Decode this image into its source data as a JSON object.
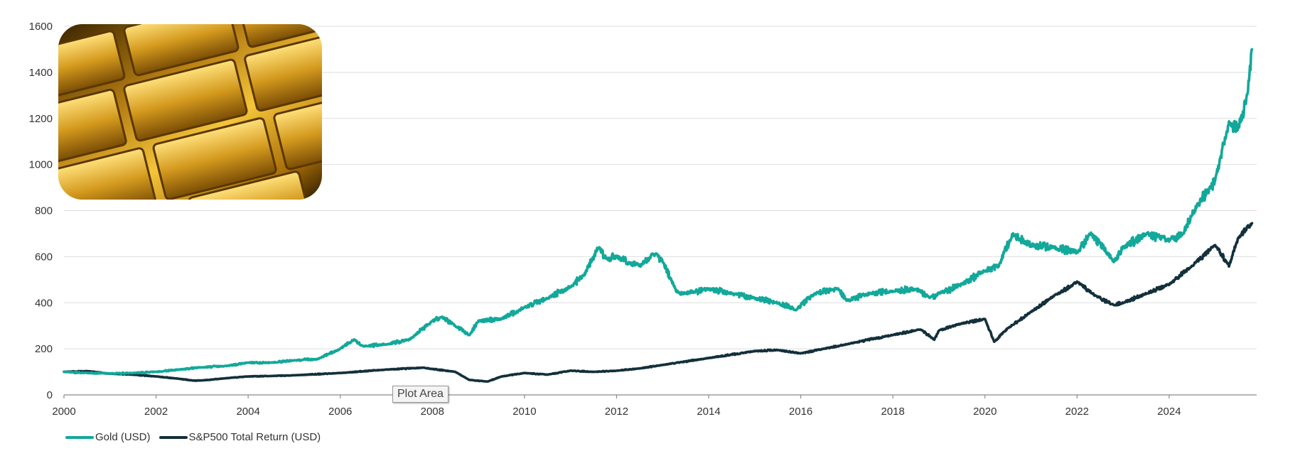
{
  "colors": {
    "gold": "#12a89a",
    "sp500": "#13303b",
    "grid": "#dedede",
    "axis": "#8a8a8a"
  },
  "image": {
    "icon": "gold-bars-photo"
  },
  "tooltip": {
    "text": "Plot Area"
  },
  "legend": {
    "items": [
      {
        "label": "Gold (USD)",
        "color": "#12a89a"
      },
      {
        "label": "S&P500 Total Return (USD)",
        "color": "#13303b"
      }
    ]
  },
  "chart_data": {
    "type": "line",
    "title": "",
    "xlabel": "",
    "ylabel": "",
    "xlim": [
      2000,
      2025.9
    ],
    "ylim": [
      0,
      1600
    ],
    "xticks": [
      "2000",
      "2002",
      "2004",
      "2006",
      "2008",
      "2010",
      "2012",
      "2014",
      "2016",
      "2018",
      "2020",
      "2022",
      "2024"
    ],
    "yticks": [
      "0",
      "200",
      "400",
      "600",
      "800",
      "1000",
      "1200",
      "1400",
      "1600"
    ],
    "grid": "horizontal",
    "legend_position": "bottom-left",
    "series": [
      {
        "name": "Gold (USD)",
        "color": "#12a89a",
        "x": [
          2000,
          2000.5,
          2001,
          2001.5,
          2002,
          2002.5,
          2003,
          2003.5,
          2004,
          2004.5,
          2005,
          2005.5,
          2006,
          2006.3,
          2006.5,
          2007,
          2007.5,
          2008,
          2008.2,
          2008.5,
          2008.8,
          2009,
          2009.5,
          2010,
          2010.5,
          2011,
          2011.3,
          2011.6,
          2011.8,
          2012,
          2012.5,
          2012.8,
          2013,
          2013.3,
          2013.5,
          2014,
          2014.5,
          2015,
          2015.5,
          2015.9,
          2016.3,
          2016.8,
          2017,
          2017.5,
          2018,
          2018.5,
          2018.8,
          2019,
          2019.5,
          2020,
          2020.3,
          2020.6,
          2020.9,
          2021,
          2021.5,
          2022,
          2022.3,
          2022.8,
          2023,
          2023.5,
          2024,
          2024.3,
          2024.6,
          2024.9,
          2025,
          2025.3,
          2025.5,
          2025.7,
          2025.8
        ],
        "values": [
          100,
          95,
          93,
          95,
          100,
          110,
          120,
          125,
          140,
          140,
          150,
          155,
          200,
          240,
          210,
          220,
          240,
          320,
          340,
          300,
          260,
          320,
          330,
          380,
          420,
          470,
          520,
          640,
          590,
          600,
          560,
          610,
          580,
          450,
          440,
          460,
          440,
          420,
          400,
          370,
          440,
          460,
          410,
          440,
          450,
          460,
          420,
          440,
          480,
          540,
          560,
          700,
          660,
          650,
          640,
          620,
          700,
          580,
          640,
          700,
          670,
          700,
          820,
          900,
          930,
          1180,
          1160,
          1300,
          1500
        ]
      },
      {
        "name": "S&P500 Total Return (USD)",
        "color": "#13303b",
        "x": [
          2000,
          2000.5,
          2001,
          2001.5,
          2002,
          2002.5,
          2002.8,
          2003,
          2003.5,
          2004,
          2004.5,
          2005,
          2006,
          2007,
          2007.8,
          2008.5,
          2008.8,
          2009.2,
          2009.5,
          2010,
          2010.5,
          2011,
          2011.5,
          2012,
          2012.5,
          2013,
          2014,
          2015,
          2015.5,
          2016,
          2016.5,
          2017,
          2018,
          2018.6,
          2018.9,
          2019,
          2019.5,
          2020,
          2020.2,
          2020.5,
          2021,
          2021.5,
          2022,
          2022.4,
          2022.8,
          2023,
          2023.5,
          2024,
          2024.5,
          2025,
          2025.3,
          2025.5,
          2025.8
        ],
        "values": [
          100,
          103,
          92,
          88,
          80,
          70,
          62,
          63,
          72,
          80,
          82,
          85,
          95,
          110,
          118,
          100,
          65,
          58,
          80,
          95,
          88,
          105,
          100,
          105,
          115,
          130,
          160,
          190,
          195,
          180,
          200,
          220,
          260,
          285,
          240,
          280,
          310,
          330,
          230,
          290,
          360,
          430,
          490,
          430,
          390,
          400,
          440,
          480,
          560,
          650,
          560,
          680,
          745
        ]
      }
    ]
  }
}
